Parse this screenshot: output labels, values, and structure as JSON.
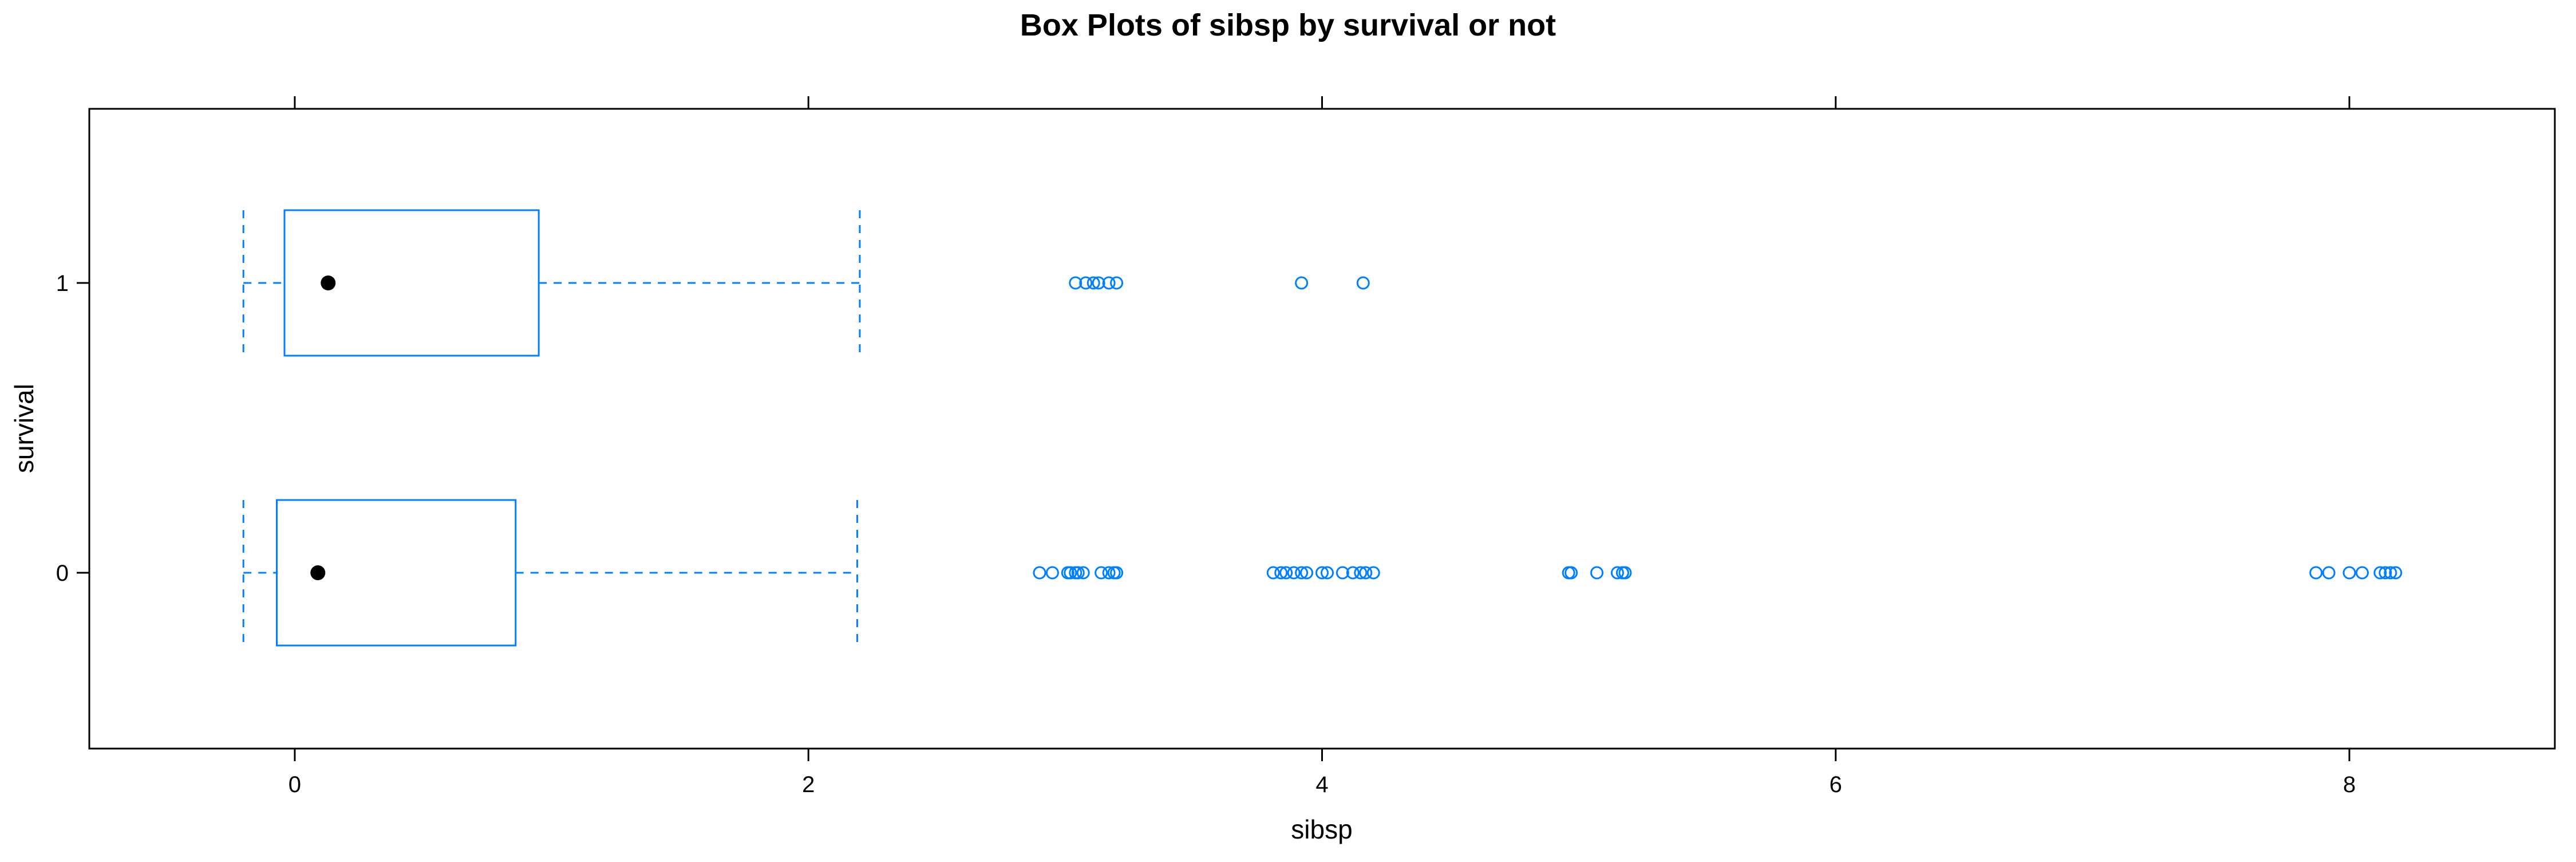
{
  "chart_data": {
    "type": "box",
    "title": "Box Plots of sibsp by survival or not",
    "xlabel": "sibsp",
    "ylabel": "survival",
    "xlim": [
      -0.8,
      8.8
    ],
    "x_ticks": [
      0,
      2,
      4,
      6,
      8
    ],
    "x_tick_labels": [
      "0",
      "2",
      "4",
      "6",
      "8"
    ],
    "categories": [
      "0",
      "1"
    ],
    "box_color": "#0080ff",
    "median_dot_color": "#000000",
    "jittered": true,
    "groups": [
      {
        "category": "0",
        "whisker_low": -0.2,
        "q1": -0.07,
        "median": 0.09,
        "q3": 0.86,
        "whisker_high": 2.19,
        "outliers": [
          2.9,
          2.95,
          3.01,
          3.02,
          3.04,
          3.05,
          3.07,
          3.14,
          3.17,
          3.19,
          3.2,
          3.81,
          3.84,
          3.86,
          3.89,
          3.92,
          3.94,
          4.0,
          4.02,
          4.08,
          4.12,
          4.15,
          4.17,
          4.2,
          4.96,
          4.97,
          5.07,
          5.15,
          5.17,
          5.18,
          7.87,
          7.92,
          8.0,
          8.05,
          8.12,
          8.14,
          8.16,
          8.18
        ]
      },
      {
        "category": "1",
        "whisker_low": -0.2,
        "q1": -0.04,
        "median": 0.13,
        "q3": 0.95,
        "whisker_high": 2.2,
        "outliers": [
          3.04,
          3.08,
          3.11,
          3.13,
          3.17,
          3.2,
          3.92,
          4.16
        ]
      }
    ]
  }
}
